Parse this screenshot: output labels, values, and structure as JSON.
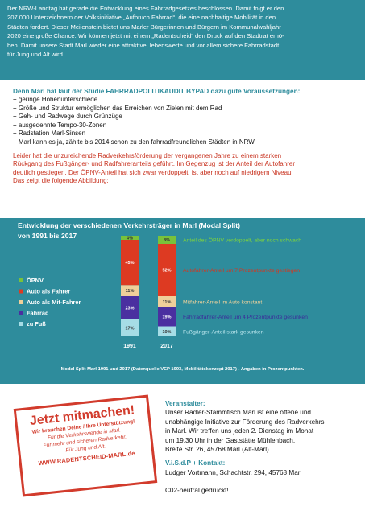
{
  "intro": {
    "lines": [
      "Der NRW-Landtag hat gerade die Entwicklung eines Fahrradgesetzes beschlossen. Damit folgt er den",
      "207.000 Unterzeichnern der Volksinitiative „Aufbruch Fahrrad“, die eine nachhaltige Mobilität in den",
      "Städten fordert. Dieser Meilenstein bietet uns Marler Bürgerinnen und Bürgern im Kommunalwahljahr",
      "2020 eine große Chance: Wir können jetzt mit einem „Radentscheid“ den Druck auf den Stadtrat erhö-",
      "hen. Damit unsere Stadt Marl wieder eine attraktive, lebenswerte und vor allem sichere Fahrradstadt",
      "für Jung und Alt wird."
    ]
  },
  "conditions": {
    "heading": "Denn Marl hat laut der Studie FAHRRADPOLITIKAUDIT BYPAD dazu gute Voraussetzungen:",
    "items": [
      "+ geringe Höhenunterschiede",
      "+ Größe und Struktur ermöglichen das Erreichen von Zielen mit dem Rad",
      "+ Geh- und Radwege durch Grünzüge",
      "+ ausgedehnte Tempo-30-Zonen",
      "+ Radstation Marl-Sinsen",
      "+ Marl kann es ja, zählte bis 2014 schon zu den fahrradfreundlichen Städten in NRW"
    ],
    "warning": [
      "Leider hat die unzureichende Radverkehrsförderung der vergangenen Jahre zu einem starken",
      "Rückgang des Fußgänger- und Radfahreranteils geführt. Im Gegenzug ist der Anteil der Autofahrer",
      "deutlich gestiegen. Der ÖPNV-Anteil hat sich zwar verdoppelt, ist aber noch auf niedrigem Niveau.",
      "Das zeigt die folgende Abbildung:"
    ]
  },
  "chart_data": {
    "type": "bar",
    "stacked": true,
    "title": "Entwicklung der verschiedenen Verkehrsträger in Marl (Modal Split)",
    "subtitle": "von 1991 bis 2017",
    "categories": [
      "1991",
      "2017"
    ],
    "series": [
      {
        "name": "zu Fuß",
        "color": "#a6dde6",
        "values": [
          17,
          10
        ]
      },
      {
        "name": "Fahrrad",
        "color": "#4a2fa0",
        "values": [
          23,
          19
        ]
      },
      {
        "name": "Auto als Mit-Fahrer",
        "color": "#efcf9a",
        "values": [
          11,
          11
        ]
      },
      {
        "name": "Auto als Fahrer",
        "color": "#dd3a22",
        "values": [
          45,
          52
        ]
      },
      {
        "name": "ÖPNV",
        "color": "#79c23a",
        "values": [
          4,
          8
        ]
      }
    ],
    "legend_order": [
      "ÖPNV",
      "Auto als Fahrer",
      "Auto als Mit-Fahrer",
      "Fahrrad",
      "zu Fuß"
    ],
    "legend_placement": "left",
    "value_suffix": "%",
    "annotations": [
      {
        "series": "ÖPNV",
        "text": "Anteil des ÖPNV verdoppelt, aber noch schwach",
        "color": "#7fd43c"
      },
      {
        "series": "Auto als Fahrer",
        "text": "Autofahrer-Anteil um 7  Prozentpunkte gestiegen",
        "color": "#d8341d"
      },
      {
        "series": "Auto als Mit-Fahrer",
        "text": "Mitfahrer-Anteil im Auto konstant",
        "color": "#f1d39b"
      },
      {
        "series": "Fahrrad",
        "text": "Fahrradfahrer-Anteil um 4 Prozentpunkte gesunken",
        "color": "#3b2a9a"
      },
      {
        "series": "zu Fuß",
        "text": "Fußgänger-Anteil stark gesunken",
        "color": "#bfe9f0"
      }
    ],
    "caption": "Modal Split Marl 1991 und 2017 (Datenquelle VEP 1993, Mobilitätskonzept 2017)  -  Angaben in Prozentpunkten."
  },
  "stamp": {
    "title1": "Jetzt mitmachen!",
    "line1": "Wir brauchen Deine / Ihre Unterstützung!",
    "line2": "Für die Verkehrswende in Marl.",
    "line3": "Für mehr und sicheren Radverkehr.",
    "line4": "Für Jung und Alt.",
    "url": "WWW.RADENTSCHEID-MARL.de"
  },
  "organizer": {
    "label": "Veranstalter:",
    "lines": [
      "Unser Radler-Stammtisch Marl ist eine offene und",
      "unabhängige Initiative zur Förderung des Radverkehrs",
      "in Marl. Wir treffen uns jeden 2. Dienstag im Monat",
      "um 19.30 Uhr in der Gaststätte Mühlenbach,",
      "Breite Str. 26, 45768 Marl (Alt-Marl)."
    ],
    "contact_label": "V.i.S.d.P + Kontakt:",
    "contact": "Ludger Vortmann, Schachtstr. 294, 45768 Marl",
    "note": "C02-neutral gedruckt!"
  }
}
